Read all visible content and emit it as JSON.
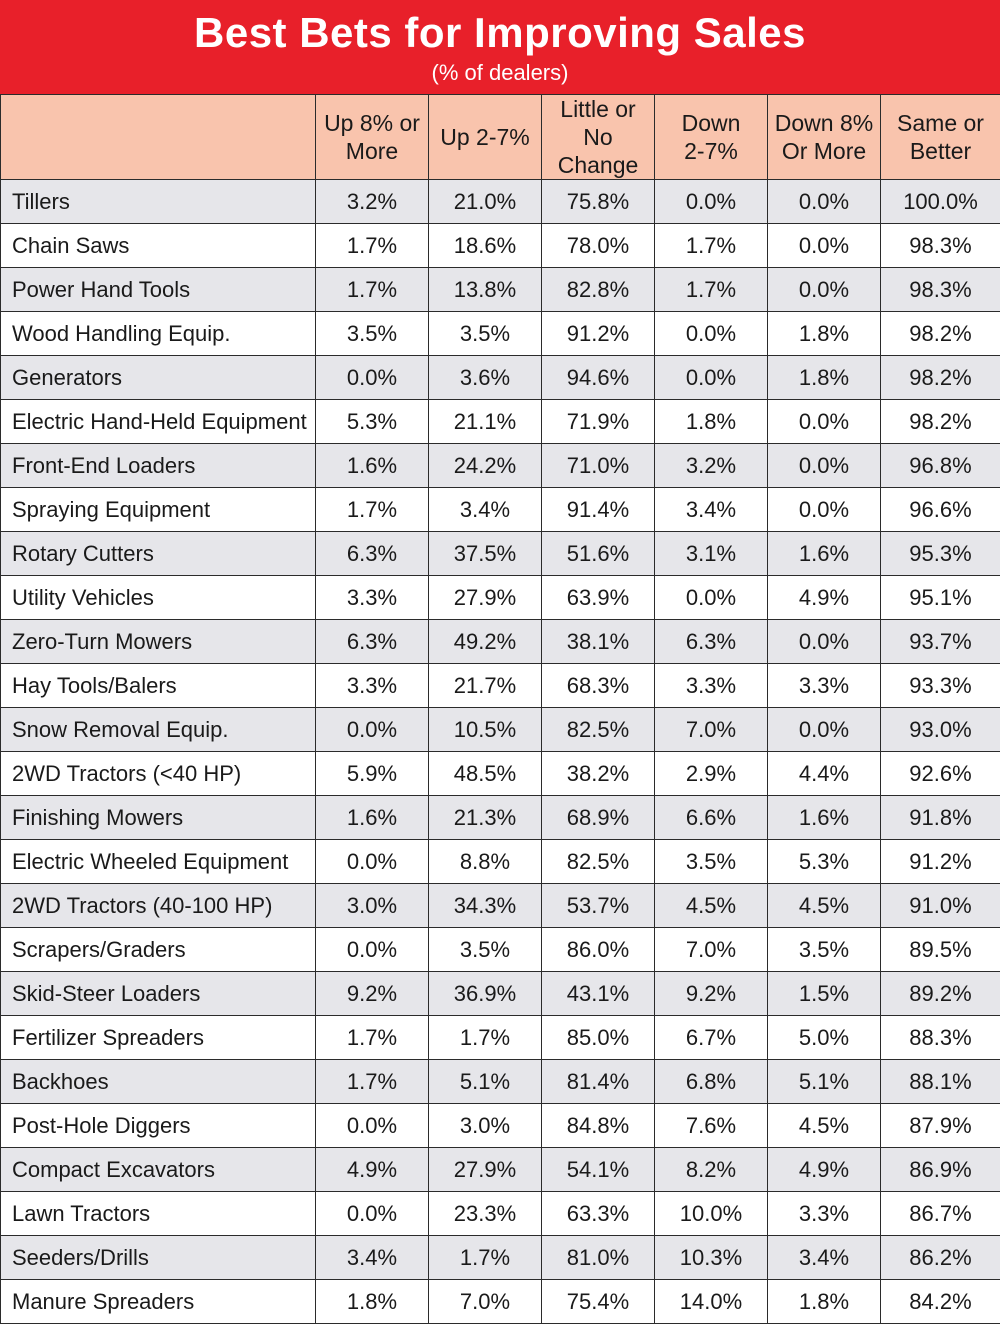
{
  "chart_data": {
    "type": "table",
    "title": "Best Bets for Improving Sales",
    "subtitle": "(% of dealers)",
    "columns": [
      "",
      "Up 8% or More",
      "Up 2-7%",
      "Little or No Change",
      "Down 2-7%",
      "Down 8% Or More",
      "Same or Better"
    ],
    "header_lines": [
      [],
      [
        "Up 8% or",
        "More"
      ],
      [
        "Up 2-7%"
      ],
      [
        "Little or No",
        "Change"
      ],
      [
        "Down",
        "2-7%"
      ],
      [
        "Down 8%",
        "Or More"
      ],
      [
        "Same or",
        "Better"
      ]
    ],
    "rows": [
      [
        "Tillers",
        "3.2%",
        "21.0%",
        "75.8%",
        "0.0%",
        "0.0%",
        "100.0%"
      ],
      [
        "Chain Saws",
        "1.7%",
        "18.6%",
        "78.0%",
        "1.7%",
        "0.0%",
        "98.3%"
      ],
      [
        "Power Hand Tools",
        "1.7%",
        "13.8%",
        "82.8%",
        "1.7%",
        "0.0%",
        "98.3%"
      ],
      [
        "Wood Handling Equip.",
        "3.5%",
        "3.5%",
        "91.2%",
        "0.0%",
        "1.8%",
        "98.2%"
      ],
      [
        "Generators",
        "0.0%",
        "3.6%",
        "94.6%",
        "0.0%",
        "1.8%",
        "98.2%"
      ],
      [
        "Electric Hand-Held Equipment",
        "5.3%",
        "21.1%",
        "71.9%",
        "1.8%",
        "0.0%",
        "98.2%"
      ],
      [
        "Front-End Loaders",
        "1.6%",
        "24.2%",
        "71.0%",
        "3.2%",
        "0.0%",
        "96.8%"
      ],
      [
        "Spraying Equipment",
        "1.7%",
        "3.4%",
        "91.4%",
        "3.4%",
        "0.0%",
        "96.6%"
      ],
      [
        "Rotary Cutters",
        "6.3%",
        "37.5%",
        "51.6%",
        "3.1%",
        "1.6%",
        "95.3%"
      ],
      [
        "Utility Vehicles",
        "3.3%",
        "27.9%",
        "63.9%",
        "0.0%",
        "4.9%",
        "95.1%"
      ],
      [
        "Zero-Turn Mowers",
        "6.3%",
        "49.2%",
        "38.1%",
        "6.3%",
        "0.0%",
        "93.7%"
      ],
      [
        "Hay Tools/Balers",
        "3.3%",
        "21.7%",
        "68.3%",
        "3.3%",
        "3.3%",
        "93.3%"
      ],
      [
        "Snow Removal Equip.",
        "0.0%",
        "10.5%",
        "82.5%",
        "7.0%",
        "0.0%",
        "93.0%"
      ],
      [
        "2WD Tractors (<40 HP)",
        "5.9%",
        "48.5%",
        "38.2%",
        "2.9%",
        "4.4%",
        "92.6%"
      ],
      [
        "Finishing Mowers",
        "1.6%",
        "21.3%",
        "68.9%",
        "6.6%",
        "1.6%",
        "91.8%"
      ],
      [
        "Electric Wheeled Equipment",
        "0.0%",
        "8.8%",
        "82.5%",
        "3.5%",
        "5.3%",
        "91.2%"
      ],
      [
        "2WD Tractors (40-100 HP)",
        "3.0%",
        "34.3%",
        "53.7%",
        "4.5%",
        "4.5%",
        "91.0%"
      ],
      [
        "Scrapers/Graders",
        "0.0%",
        "3.5%",
        "86.0%",
        "7.0%",
        "3.5%",
        "89.5%"
      ],
      [
        "Skid-Steer Loaders",
        "9.2%",
        "36.9%",
        "43.1%",
        "9.2%",
        "1.5%",
        "89.2%"
      ],
      [
        "Fertilizer Spreaders",
        "1.7%",
        "1.7%",
        "85.0%",
        "6.7%",
        "5.0%",
        "88.3%"
      ],
      [
        "Backhoes",
        "1.7%",
        "5.1%",
        "81.4%",
        "6.8%",
        "5.1%",
        "88.1%"
      ],
      [
        "Post-Hole Diggers",
        "0.0%",
        "3.0%",
        "84.8%",
        "7.6%",
        "4.5%",
        "87.9%"
      ],
      [
        "Compact Excavators",
        "4.9%",
        "27.9%",
        "54.1%",
        "8.2%",
        "4.9%",
        "86.9%"
      ],
      [
        "Lawn Tractors",
        "0.0%",
        "23.3%",
        "63.3%",
        "10.0%",
        "3.3%",
        "86.7%"
      ],
      [
        "Seeders/Drills",
        "3.4%",
        "1.7%",
        "81.0%",
        "10.3%",
        "3.4%",
        "86.2%"
      ],
      [
        "Manure Spreaders",
        "1.8%",
        "7.0%",
        "75.4%",
        "14.0%",
        "1.8%",
        "84.2%"
      ]
    ],
    "colors": {
      "banner": "#e8202a",
      "header": "#f9c4ad",
      "row_shade": "#e6e6ea",
      "row_plain": "#ffffff"
    }
  }
}
